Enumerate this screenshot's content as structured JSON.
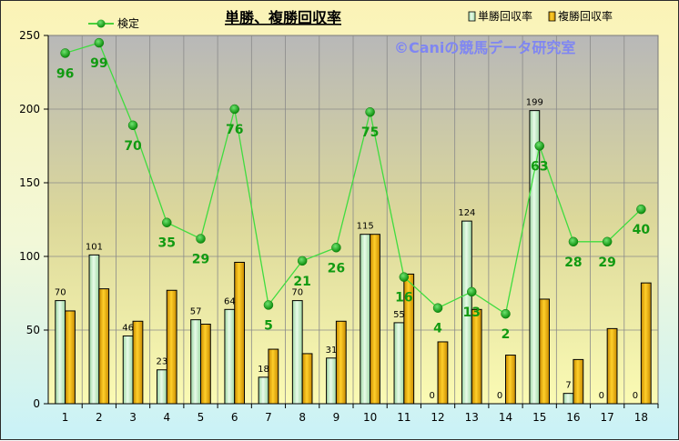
{
  "chart_data": {
    "type": "bar",
    "title": "単勝、複勝回収率",
    "watermark": "©Caniの競馬データ研究室",
    "categories": [
      "1",
      "2",
      "3",
      "4",
      "5",
      "6",
      "7",
      "8",
      "9",
      "10",
      "11",
      "12",
      "13",
      "14",
      "15",
      "16",
      "17",
      "18"
    ],
    "ylim": [
      0,
      250
    ],
    "yticks": [
      0,
      50,
      100,
      150,
      200,
      250
    ],
    "grid": true,
    "legend_position": "top",
    "series": [
      {
        "name": "単勝回収率",
        "kind": "bar",
        "color": "#c9f2cf",
        "values": [
          70,
          101,
          46,
          23,
          57,
          64,
          18,
          70,
          31,
          115,
          55,
          0,
          124,
          0,
          199,
          7,
          0,
          0
        ],
        "labels": [
          "70",
          "101",
          "46",
          "23",
          "57",
          "64",
          "18",
          "70",
          "31",
          "115",
          "55",
          "0",
          "124",
          "0",
          "199",
          "7",
          "0",
          "0"
        ]
      },
      {
        "name": "複勝回収率",
        "kind": "bar",
        "color": "#f0b400",
        "values": [
          63,
          78,
          56,
          77,
          54,
          96,
          37,
          34,
          56,
          115,
          88,
          42,
          64,
          33,
          71,
          30,
          51,
          82
        ]
      },
      {
        "name": "検定",
        "kind": "line",
        "color": "#11a611",
        "values": [
          238,
          245,
          189,
          123,
          112,
          200,
          67,
          97,
          106,
          198,
          86,
          65,
          76,
          61,
          175,
          110,
          110,
          132
        ],
        "labels": [
          "96",
          "99",
          "70",
          "35",
          "29",
          "76",
          "5",
          "21",
          "26",
          "75",
          "16",
          "4",
          "13",
          "2",
          "63",
          "28",
          "29",
          "40"
        ]
      }
    ]
  }
}
